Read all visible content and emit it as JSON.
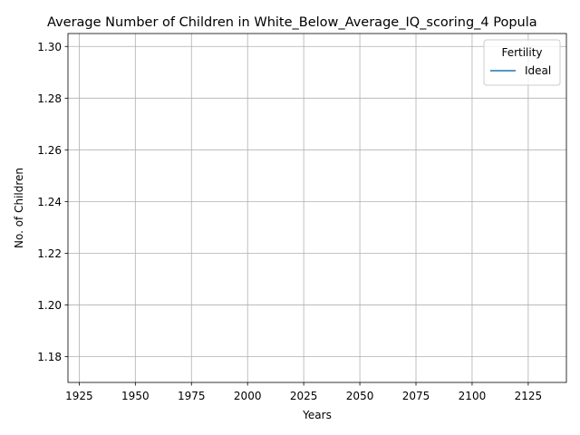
{
  "chart_data": {
    "type": "line",
    "title": "Average Number of Children in White_Below_Average_IQ_scoring_4 Popula",
    "xlabel": "Years",
    "ylabel": "No. of Children",
    "xlim": [
      1920,
      2142
    ],
    "ylim": [
      1.17,
      1.305
    ],
    "xticks": [
      1925,
      1950,
      1975,
      2000,
      2025,
      2050,
      2075,
      2100,
      2125
    ],
    "yticks": [
      1.18,
      1.2,
      1.22,
      1.24,
      1.26,
      1.28,
      1.3
    ],
    "ytick_labels": [
      "1.18",
      "1.20",
      "1.22",
      "1.24",
      "1.26",
      "1.28",
      "1.30"
    ],
    "grid": true,
    "legend": {
      "title": "Fertility",
      "position": "top-right"
    },
    "series": [
      {
        "name": "Ideal",
        "color": "#1f77b4",
        "x": [],
        "y": []
      }
    ]
  }
}
